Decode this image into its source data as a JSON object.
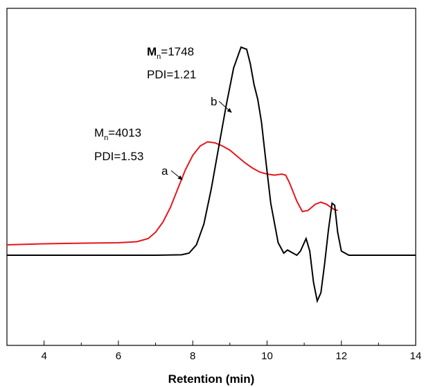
{
  "chart_data": {
    "type": "line",
    "title": "",
    "xlabel": "Retention (min)",
    "ylabel": "",
    "xlim": [
      3,
      14
    ],
    "ylim": [
      -0.35,
      1.0
    ],
    "xticks": [
      4,
      6,
      8,
      10,
      12,
      14
    ],
    "xticks_minor": [
      3,
      5,
      7,
      9,
      11,
      13
    ],
    "show_y_ticks": false,
    "grid": false,
    "series": [
      {
        "name": "a",
        "color": "#e8141c",
        "points": [
          [
            3.0,
            0.05
          ],
          [
            4.0,
            0.055
          ],
          [
            5.0,
            0.058
          ],
          [
            6.0,
            0.06
          ],
          [
            6.5,
            0.065
          ],
          [
            6.8,
            0.08
          ],
          [
            7.0,
            0.11
          ],
          [
            7.2,
            0.16
          ],
          [
            7.4,
            0.23
          ],
          [
            7.6,
            0.32
          ],
          [
            7.8,
            0.41
          ],
          [
            8.0,
            0.48
          ],
          [
            8.2,
            0.525
          ],
          [
            8.4,
            0.545
          ],
          [
            8.6,
            0.54
          ],
          [
            8.8,
            0.525
          ],
          [
            9.0,
            0.505
          ],
          [
            9.2,
            0.475
          ],
          [
            9.4,
            0.445
          ],
          [
            9.6,
            0.42
          ],
          [
            9.8,
            0.4
          ],
          [
            10.0,
            0.39
          ],
          [
            10.2,
            0.385
          ],
          [
            10.4,
            0.39
          ],
          [
            10.5,
            0.385
          ],
          [
            10.6,
            0.35
          ],
          [
            10.8,
            0.26
          ],
          [
            10.95,
            0.21
          ],
          [
            11.1,
            0.215
          ],
          [
            11.3,
            0.245
          ],
          [
            11.45,
            0.255
          ],
          [
            11.6,
            0.245
          ],
          [
            11.8,
            0.22
          ],
          [
            11.9,
            0.215
          ]
        ]
      },
      {
        "name": "b",
        "color": "#000000",
        "points": [
          [
            3.0,
            0.0
          ],
          [
            5.0,
            0.0
          ],
          [
            6.0,
            0.0
          ],
          [
            7.0,
            0.0
          ],
          [
            7.7,
            0.002
          ],
          [
            7.9,
            0.01
          ],
          [
            8.1,
            0.05
          ],
          [
            8.3,
            0.15
          ],
          [
            8.5,
            0.32
          ],
          [
            8.7,
            0.52
          ],
          [
            8.9,
            0.72
          ],
          [
            9.1,
            0.9
          ],
          [
            9.3,
            1.0
          ],
          [
            9.45,
            0.99
          ],
          [
            9.55,
            0.92
          ],
          [
            9.65,
            0.82
          ],
          [
            9.75,
            0.75
          ],
          [
            9.85,
            0.64
          ],
          [
            9.95,
            0.48
          ],
          [
            10.1,
            0.25
          ],
          [
            10.3,
            0.06
          ],
          [
            10.45,
            0.01
          ],
          [
            10.55,
            0.025
          ],
          [
            10.65,
            0.015
          ],
          [
            10.8,
            0.0
          ],
          [
            10.9,
            0.02
          ],
          [
            11.05,
            0.08
          ],
          [
            11.15,
            0.02
          ],
          [
            11.25,
            -0.13
          ],
          [
            11.35,
            -0.22
          ],
          [
            11.45,
            -0.18
          ],
          [
            11.55,
            -0.04
          ],
          [
            11.65,
            0.12
          ],
          [
            11.75,
            0.25
          ],
          [
            11.82,
            0.24
          ],
          [
            11.9,
            0.11
          ],
          [
            12.0,
            0.02
          ],
          [
            12.2,
            0.0
          ],
          [
            13.0,
            0.0
          ],
          [
            14.0,
            0.0
          ]
        ]
      }
    ],
    "annotations": {
      "a": {
        "mn_symbol": "M",
        "mn_sub": "n",
        "mn_value": "=4013",
        "pdi": "PDI=1.53",
        "curve_label": "a"
      },
      "b": {
        "mn_symbol": "M",
        "mn_sub": "n",
        "mn_value": "=1748",
        "pdi": "PDI=1.21",
        "curve_label": "b"
      }
    }
  }
}
